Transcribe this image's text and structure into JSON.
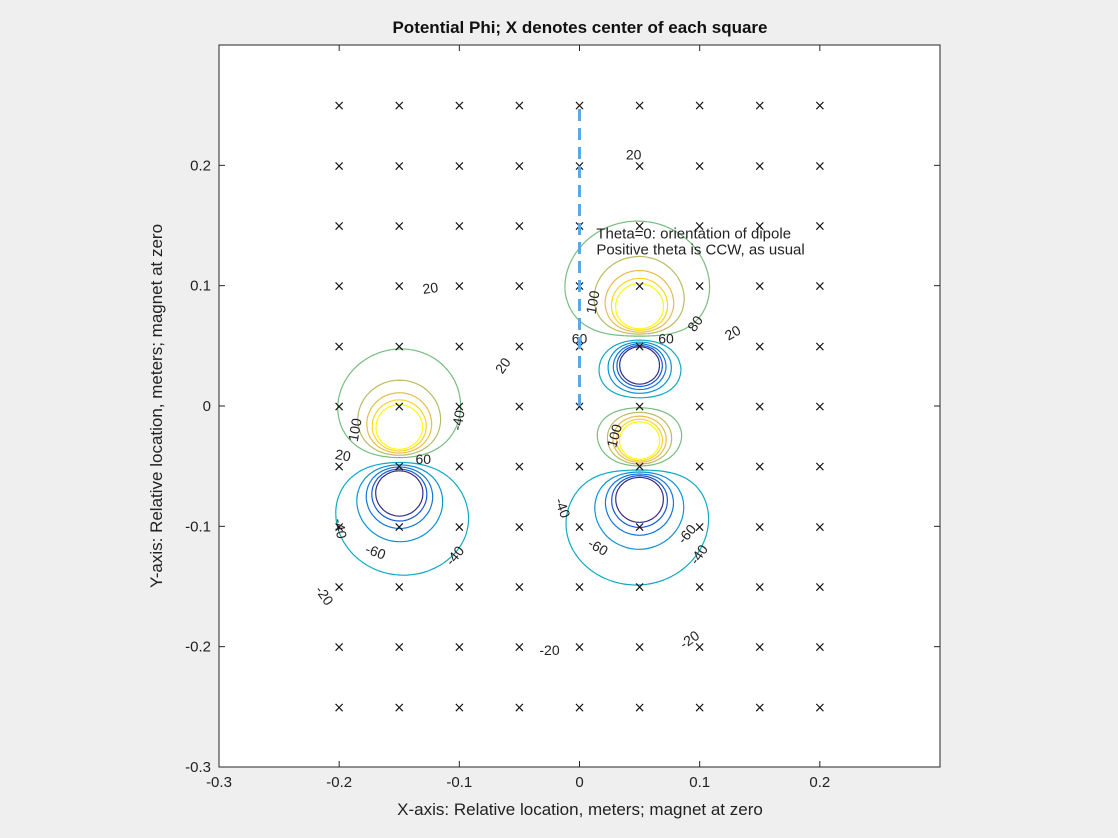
{
  "chart_data": {
    "type": "contour",
    "title": "Potential Phi;  X denotes center of each square",
    "xlabel": "X-axis: Relative location, meters;  magnet at zero",
    "ylabel": "Y-axis: Relative location, meters;  magnet at zero",
    "xlim": [
      -0.3,
      0.3
    ],
    "ylim": [
      -0.3,
      0.3
    ],
    "xticks": [
      -0.3,
      -0.2,
      -0.1,
      0,
      0.1,
      0.2
    ],
    "yticks": [
      -0.3,
      -0.2,
      -0.1,
      0,
      0.1,
      0.2
    ],
    "xtick_labels": [
      "-0.3",
      "-0.2",
      "-0.1",
      "0",
      "0.1",
      "0.2"
    ],
    "ytick_labels": [
      "-0.3",
      "-0.2",
      "-0.1",
      "0",
      "0.1",
      "0.2"
    ],
    "grid": false,
    "square_centers": {
      "x": [
        -0.2,
        -0.15,
        -0.1,
        -0.05,
        0,
        0.05,
        0.1,
        0.15,
        0.2
      ],
      "y": [
        0.25,
        0.2,
        0.15,
        0.1,
        0.05,
        0,
        -0.05,
        -0.1,
        -0.15,
        -0.2,
        -0.25
      ],
      "marker": "×"
    },
    "dipole_line": {
      "x": 0,
      "y_from": 0,
      "y_to": 0.25,
      "style": "dashed",
      "color": "#5aa9e6"
    },
    "dipoles": [
      {
        "x": -0.15,
        "y_pos": -0.02,
        "y_neg": -0.07
      },
      {
        "x": 0.05,
        "y_pos": 0.08,
        "y_neg": 0.035
      },
      {
        "x": 0.05,
        "y_pos": -0.03,
        "y_neg": -0.075
      }
    ],
    "contour_labels": [
      {
        "text": "20",
        "x": 0.045,
        "y": 0.208,
        "rot": 0
      },
      {
        "text": "20",
        "x": -0.124,
        "y": 0.097,
        "rot": -8
      },
      {
        "text": "20",
        "x": -0.063,
        "y": 0.033,
        "rot": -55
      },
      {
        "text": "20",
        "x": 0.128,
        "y": 0.06,
        "rot": -30
      },
      {
        "text": "-20",
        "x": -0.025,
        "y": -0.204,
        "rot": 0
      },
      {
        "text": "-20",
        "x": 0.092,
        "y": -0.195,
        "rot": -35
      },
      {
        "text": "-20",
        "x": -0.213,
        "y": -0.158,
        "rot": 55
      },
      {
        "text": "-40",
        "x": -0.1,
        "y": -0.012,
        "rot": -80
      },
      {
        "text": "-40",
        "x": -0.2,
        "y": -0.102,
        "rot": 80
      },
      {
        "text": "-40",
        "x": -0.103,
        "y": -0.125,
        "rot": -50
      },
      {
        "text": "-40",
        "x": -0.015,
        "y": -0.085,
        "rot": 70
      },
      {
        "text": "-40",
        "x": 0.1,
        "y": -0.124,
        "rot": -55
      },
      {
        "text": "-60",
        "x": -0.17,
        "y": -0.122,
        "rot": 20
      },
      {
        "text": "-60",
        "x": 0.015,
        "y": -0.118,
        "rot": 30
      },
      {
        "text": "-60",
        "x": 0.09,
        "y": -0.107,
        "rot": -50
      },
      {
        "text": "60",
        "x": -0.13,
        "y": -0.045,
        "rot": 0
      },
      {
        "text": "60",
        "x": 0.0,
        "y": 0.055,
        "rot": 0
      },
      {
        "text": "60",
        "x": 0.072,
        "y": 0.055,
        "rot": 0
      },
      {
        "text": "80",
        "x": 0.097,
        "y": 0.068,
        "rot": -55
      },
      {
        "text": "20",
        "x": -0.197,
        "y": -0.042,
        "rot": 10
      },
      {
        "text": "100",
        "x": 0.012,
        "y": 0.086,
        "rot": -80
      },
      {
        "text": "100",
        "x": -0.186,
        "y": -0.02,
        "rot": -80
      },
      {
        "text": "100",
        "x": 0.03,
        "y": -0.025,
        "rot": -75
      }
    ],
    "annotation": {
      "line1": "Theta=0: orientation of dipole",
      "line2": "Positive theta is CCW, as usual",
      "x": 0.014,
      "y": 0.139
    }
  }
}
